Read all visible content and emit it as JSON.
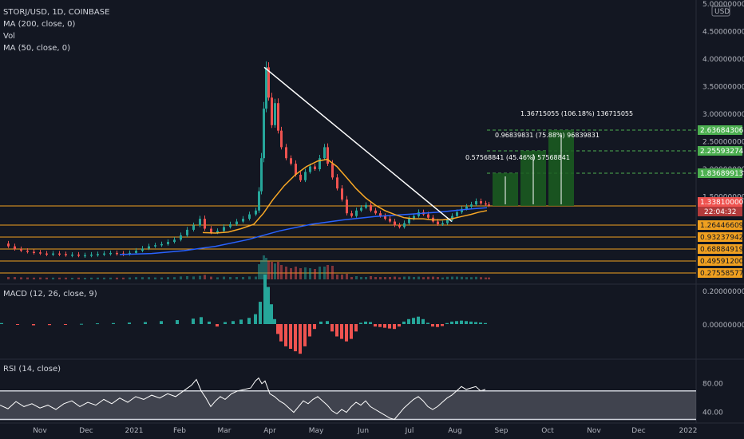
{
  "legend": {
    "symbol": "STORJ/USD, 1D, COINBASE",
    "ma200": "MA (200, close, 0)",
    "vol": "Vol",
    "ma50": "MA (50, close, 0)"
  },
  "colors": {
    "background": "#131722",
    "up": "#26a69a",
    "down": "#ef5350",
    "ma200": "#2962ff",
    "ma50": "#f9a825",
    "level": "#f0a020",
    "target": "#4caf50",
    "rsi": "#ffffff",
    "price_tag": "#ef5350"
  },
  "chart_data": {
    "type": "candlestick",
    "x_ticks": [
      "Nov",
      "Dec",
      "2021",
      "Feb",
      "Mar",
      "Apr",
      "May",
      "Jun",
      "Jul",
      "Aug",
      "Sep",
      "Oct",
      "Nov",
      "Dec",
      "2022"
    ],
    "price_axis": {
      "currency": "USD",
      "ticks": [
        "5.00000000",
        "4.50000000",
        "4.00000000",
        "3.50000000",
        "3.00000000",
        "2.50000000",
        "2.00000000",
        "1.50000000"
      ],
      "ylim": [
        0.2,
        5.0
      ]
    },
    "current_price": "1.33810000",
    "countdown": "22:04:32",
    "level_tags": [
      "1.26446609",
      "0.93237942",
      "0.68884919",
      "0.49591200",
      "0.27558577"
    ],
    "target_tags": [
      "2.63684306",
      "2.25593274",
      "1.83689913"
    ],
    "annotations": [
      "1.36715055 (106.18%) 136715055",
      "0.96839831 (75.88%) 96839831",
      "0.57568841 (45.46%) 57568841"
    ],
    "close_series": [
      {
        "x": 0,
        "y": 0.65
      },
      {
        "x": 8,
        "y": 0.6
      },
      {
        "x": 16,
        "y": 0.55
      },
      {
        "x": 24,
        "y": 0.52
      },
      {
        "x": 32,
        "y": 0.5
      },
      {
        "x": 40,
        "y": 0.49
      },
      {
        "x": 48,
        "y": 0.47
      },
      {
        "x": 56,
        "y": 0.46
      },
      {
        "x": 64,
        "y": 0.47
      },
      {
        "x": 72,
        "y": 0.46
      },
      {
        "x": 80,
        "y": 0.45
      },
      {
        "x": 88,
        "y": 0.45
      },
      {
        "x": 96,
        "y": 0.44
      },
      {
        "x": 104,
        "y": 0.44
      },
      {
        "x": 112,
        "y": 0.45
      },
      {
        "x": 120,
        "y": 0.46
      },
      {
        "x": 128,
        "y": 0.47
      },
      {
        "x": 136,
        "y": 0.48
      },
      {
        "x": 144,
        "y": 0.47
      },
      {
        "x": 152,
        "y": 0.46
      },
      {
        "x": 160,
        "y": 0.48
      },
      {
        "x": 168,
        "y": 0.52
      },
      {
        "x": 176,
        "y": 0.56
      },
      {
        "x": 184,
        "y": 0.6
      },
      {
        "x": 192,
        "y": 0.62
      },
      {
        "x": 200,
        "y": 0.64
      },
      {
        "x": 208,
        "y": 0.68
      },
      {
        "x": 216,
        "y": 0.72
      },
      {
        "x": 224,
        "y": 0.8
      },
      {
        "x": 232,
        "y": 0.9
      },
      {
        "x": 240,
        "y": 0.98
      },
      {
        "x": 248,
        "y": 1.1
      },
      {
        "x": 254,
        "y": 0.92
      },
      {
        "x": 262,
        "y": 0.85
      },
      {
        "x": 270,
        "y": 0.88
      },
      {
        "x": 278,
        "y": 0.95
      },
      {
        "x": 286,
        "y": 1.0
      },
      {
        "x": 294,
        "y": 1.05
      },
      {
        "x": 302,
        "y": 1.1
      },
      {
        "x": 310,
        "y": 1.18
      },
      {
        "x": 318,
        "y": 1.25
      },
      {
        "x": 322,
        "y": 1.6
      },
      {
        "x": 325,
        "y": 2.2
      },
      {
        "x": 328,
        "y": 3.1
      },
      {
        "x": 331,
        "y": 3.85
      },
      {
        "x": 334,
        "y": 3.3
      },
      {
        "x": 338,
        "y": 2.8
      },
      {
        "x": 342,
        "y": 3.2
      },
      {
        "x": 346,
        "y": 2.7
      },
      {
        "x": 350,
        "y": 2.4
      },
      {
        "x": 356,
        "y": 2.2
      },
      {
        "x": 362,
        "y": 2.1
      },
      {
        "x": 368,
        "y": 1.9
      },
      {
        "x": 374,
        "y": 1.8
      },
      {
        "x": 380,
        "y": 1.95
      },
      {
        "x": 386,
        "y": 2.05
      },
      {
        "x": 392,
        "y": 2.0
      },
      {
        "x": 398,
        "y": 2.2
      },
      {
        "x": 404,
        "y": 2.4
      },
      {
        "x": 408,
        "y": 2.1
      },
      {
        "x": 414,
        "y": 1.85
      },
      {
        "x": 420,
        "y": 1.65
      },
      {
        "x": 426,
        "y": 1.45
      },
      {
        "x": 432,
        "y": 1.2
      },
      {
        "x": 438,
        "y": 1.15
      },
      {
        "x": 444,
        "y": 1.25
      },
      {
        "x": 450,
        "y": 1.3
      },
      {
        "x": 456,
        "y": 1.35
      },
      {
        "x": 462,
        "y": 1.25
      },
      {
        "x": 468,
        "y": 1.2
      },
      {
        "x": 474,
        "y": 1.15
      },
      {
        "x": 480,
        "y": 1.1
      },
      {
        "x": 486,
        "y": 1.05
      },
      {
        "x": 492,
        "y": 0.98
      },
      {
        "x": 498,
        "y": 0.95
      },
      {
        "x": 504,
        "y": 1.02
      },
      {
        "x": 510,
        "y": 1.1
      },
      {
        "x": 516,
        "y": 1.15
      },
      {
        "x": 522,
        "y": 1.22
      },
      {
        "x": 528,
        "y": 1.18
      },
      {
        "x": 534,
        "y": 1.12
      },
      {
        "x": 540,
        "y": 1.05
      },
      {
        "x": 546,
        "y": 1.0
      },
      {
        "x": 552,
        "y": 1.02
      },
      {
        "x": 558,
        "y": 1.08
      },
      {
        "x": 564,
        "y": 1.15
      },
      {
        "x": 570,
        "y": 1.22
      },
      {
        "x": 576,
        "y": 1.28
      },
      {
        "x": 582,
        "y": 1.32
      },
      {
        "x": 588,
        "y": 1.36
      },
      {
        "x": 594,
        "y": 1.42
      },
      {
        "x": 600,
        "y": 1.38
      },
      {
        "x": 606,
        "y": 1.36
      },
      {
        "x": 610,
        "y": 1.34
      }
    ],
    "ma50_series": [
      {
        "x": 254,
        "y": 0.85
      },
      {
        "x": 270,
        "y": 0.84
      },
      {
        "x": 286,
        "y": 0.86
      },
      {
        "x": 302,
        "y": 0.92
      },
      {
        "x": 318,
        "y": 1.0
      },
      {
        "x": 330,
        "y": 1.2
      },
      {
        "x": 342,
        "y": 1.45
      },
      {
        "x": 356,
        "y": 1.7
      },
      {
        "x": 370,
        "y": 1.9
      },
      {
        "x": 384,
        "y": 2.05
      },
      {
        "x": 398,
        "y": 2.15
      },
      {
        "x": 410,
        "y": 2.18
      },
      {
        "x": 422,
        "y": 2.05
      },
      {
        "x": 434,
        "y": 1.85
      },
      {
        "x": 446,
        "y": 1.65
      },
      {
        "x": 458,
        "y": 1.48
      },
      {
        "x": 470,
        "y": 1.35
      },
      {
        "x": 482,
        "y": 1.25
      },
      {
        "x": 494,
        "y": 1.18
      },
      {
        "x": 506,
        "y": 1.12
      },
      {
        "x": 518,
        "y": 1.1
      },
      {
        "x": 530,
        "y": 1.1
      },
      {
        "x": 542,
        "y": 1.08
      },
      {
        "x": 554,
        "y": 1.08
      },
      {
        "x": 566,
        "y": 1.1
      },
      {
        "x": 578,
        "y": 1.14
      },
      {
        "x": 590,
        "y": 1.18
      },
      {
        "x": 600,
        "y": 1.22
      },
      {
        "x": 610,
        "y": 1.25
      }
    ],
    "ma200_series": [
      {
        "x": 150,
        "y": 0.45
      },
      {
        "x": 190,
        "y": 0.47
      },
      {
        "x": 230,
        "y": 0.52
      },
      {
        "x": 270,
        "y": 0.6
      },
      {
        "x": 310,
        "y": 0.72
      },
      {
        "x": 350,
        "y": 0.88
      },
      {
        "x": 390,
        "y": 1.0
      },
      {
        "x": 430,
        "y": 1.08
      },
      {
        "x": 470,
        "y": 1.14
      },
      {
        "x": 510,
        "y": 1.18
      },
      {
        "x": 550,
        "y": 1.22
      },
      {
        "x": 590,
        "y": 1.28
      },
      {
        "x": 610,
        "y": 1.3
      }
    ],
    "macd_axis": {
      "ticks": [
        "0.20000000",
        "0.00000000"
      ],
      "ylim": [
        -0.13,
        0.25
      ]
    },
    "macd_hist": [
      {
        "x": 0,
        "y": 0.004
      },
      {
        "x": 20,
        "y": -0.003
      },
      {
        "x": 40,
        "y": -0.005
      },
      {
        "x": 60,
        "y": -0.004
      },
      {
        "x": 80,
        "y": -0.002
      },
      {
        "x": 100,
        "y": 0.001
      },
      {
        "x": 120,
        "y": 0.003
      },
      {
        "x": 140,
        "y": 0.004
      },
      {
        "x": 160,
        "y": 0.006
      },
      {
        "x": 180,
        "y": 0.008
      },
      {
        "x": 200,
        "y": 0.012
      },
      {
        "x": 220,
        "y": 0.016
      },
      {
        "x": 240,
        "y": 0.022
      },
      {
        "x": 250,
        "y": 0.028
      },
      {
        "x": 260,
        "y": 0.01
      },
      {
        "x": 270,
        "y": -0.01
      },
      {
        "x": 280,
        "y": 0.008
      },
      {
        "x": 290,
        "y": 0.012
      },
      {
        "x": 300,
        "y": 0.018
      },
      {
        "x": 310,
        "y": 0.025
      },
      {
        "x": 318,
        "y": 0.04
      },
      {
        "x": 324,
        "y": 0.09
      },
      {
        "x": 330,
        "y": 0.2
      },
      {
        "x": 334,
        "y": 0.15
      },
      {
        "x": 338,
        "y": 0.08
      },
      {
        "x": 342,
        "y": 0.02
      },
      {
        "x": 346,
        "y": -0.04
      },
      {
        "x": 350,
        "y": -0.07
      },
      {
        "x": 356,
        "y": -0.09
      },
      {
        "x": 362,
        "y": -0.1
      },
      {
        "x": 368,
        "y": -0.11
      },
      {
        "x": 374,
        "y": -0.12
      },
      {
        "x": 380,
        "y": -0.09
      },
      {
        "x": 386,
        "y": -0.05
      },
      {
        "x": 392,
        "y": -0.02
      },
      {
        "x": 400,
        "y": 0.01
      },
      {
        "x": 408,
        "y": 0.012
      },
      {
        "x": 414,
        "y": -0.03
      },
      {
        "x": 420,
        "y": -0.05
      },
      {
        "x": 426,
        "y": -0.06
      },
      {
        "x": 432,
        "y": -0.07
      },
      {
        "x": 438,
        "y": -0.06
      },
      {
        "x": 444,
        "y": -0.03
      },
      {
        "x": 450,
        "y": 0.005
      },
      {
        "x": 456,
        "y": 0.01
      },
      {
        "x": 462,
        "y": 0.008
      },
      {
        "x": 468,
        "y": -0.01
      },
      {
        "x": 474,
        "y": -0.012
      },
      {
        "x": 480,
        "y": -0.015
      },
      {
        "x": 486,
        "y": -0.018
      },
      {
        "x": 492,
        "y": -0.02
      },
      {
        "x": 498,
        "y": -0.01
      },
      {
        "x": 504,
        "y": 0.01
      },
      {
        "x": 510,
        "y": 0.02
      },
      {
        "x": 516,
        "y": 0.025
      },
      {
        "x": 522,
        "y": 0.03
      },
      {
        "x": 528,
        "y": 0.02
      },
      {
        "x": 534,
        "y": 0.005
      },
      {
        "x": 540,
        "y": -0.01
      },
      {
        "x": 546,
        "y": -0.012
      },
      {
        "x": 552,
        "y": -0.008
      },
      {
        "x": 558,
        "y": 0.004
      },
      {
        "x": 564,
        "y": 0.01
      },
      {
        "x": 570,
        "y": 0.012
      },
      {
        "x": 576,
        "y": 0.014
      },
      {
        "x": 582,
        "y": 0.012
      },
      {
        "x": 588,
        "y": 0.01
      },
      {
        "x": 594,
        "y": 0.008
      },
      {
        "x": 600,
        "y": 0.006
      },
      {
        "x": 606,
        "y": 0.004
      }
    ],
    "rsi_axis": {
      "ticks": [
        "80.00",
        "40.00"
      ],
      "ylim": [
        25,
        92
      ]
    },
    "rsi_series": [
      {
        "x": 0,
        "y": 50
      },
      {
        "x": 10,
        "y": 45
      },
      {
        "x": 20,
        "y": 55
      },
      {
        "x": 30,
        "y": 48
      },
      {
        "x": 40,
        "y": 52
      },
      {
        "x": 50,
        "y": 46
      },
      {
        "x": 60,
        "y": 50
      },
      {
        "x": 70,
        "y": 44
      },
      {
        "x": 80,
        "y": 52
      },
      {
        "x": 90,
        "y": 56
      },
      {
        "x": 100,
        "y": 48
      },
      {
        "x": 110,
        "y": 54
      },
      {
        "x": 120,
        "y": 50
      },
      {
        "x": 130,
        "y": 58
      },
      {
        "x": 140,
        "y": 52
      },
      {
        "x": 150,
        "y": 60
      },
      {
        "x": 160,
        "y": 54
      },
      {
        "x": 170,
        "y": 62
      },
      {
        "x": 180,
        "y": 58
      },
      {
        "x": 190,
        "y": 64
      },
      {
        "x": 200,
        "y": 60
      },
      {
        "x": 210,
        "y": 66
      },
      {
        "x": 220,
        "y": 62
      },
      {
        "x": 230,
        "y": 70
      },
      {
        "x": 240,
        "y": 78
      },
      {
        "x": 246,
        "y": 86
      },
      {
        "x": 252,
        "y": 70
      },
      {
        "x": 258,
        "y": 60
      },
      {
        "x": 264,
        "y": 48
      },
      {
        "x": 270,
        "y": 56
      },
      {
        "x": 276,
        "y": 62
      },
      {
        "x": 282,
        "y": 58
      },
      {
        "x": 290,
        "y": 66
      },
      {
        "x": 298,
        "y": 70
      },
      {
        "x": 306,
        "y": 72
      },
      {
        "x": 314,
        "y": 74
      },
      {
        "x": 320,
        "y": 84
      },
      {
        "x": 324,
        "y": 88
      },
      {
        "x": 328,
        "y": 80
      },
      {
        "x": 332,
        "y": 84
      },
      {
        "x": 338,
        "y": 66
      },
      {
        "x": 344,
        "y": 62
      },
      {
        "x": 350,
        "y": 56
      },
      {
        "x": 356,
        "y": 52
      },
      {
        "x": 362,
        "y": 46
      },
      {
        "x": 368,
        "y": 40
      },
      {
        "x": 374,
        "y": 48
      },
      {
        "x": 380,
        "y": 56
      },
      {
        "x": 386,
        "y": 52
      },
      {
        "x": 392,
        "y": 58
      },
      {
        "x": 398,
        "y": 62
      },
      {
        "x": 404,
        "y": 56
      },
      {
        "x": 410,
        "y": 50
      },
      {
        "x": 416,
        "y": 42
      },
      {
        "x": 422,
        "y": 38
      },
      {
        "x": 428,
        "y": 44
      },
      {
        "x": 434,
        "y": 40
      },
      {
        "x": 440,
        "y": 48
      },
      {
        "x": 446,
        "y": 54
      },
      {
        "x": 452,
        "y": 50
      },
      {
        "x": 458,
        "y": 56
      },
      {
        "x": 464,
        "y": 48
      },
      {
        "x": 470,
        "y": 44
      },
      {
        "x": 476,
        "y": 40
      },
      {
        "x": 482,
        "y": 36
      },
      {
        "x": 488,
        "y": 32
      },
      {
        "x": 494,
        "y": 30
      },
      {
        "x": 500,
        "y": 38
      },
      {
        "x": 506,
        "y": 46
      },
      {
        "x": 512,
        "y": 52
      },
      {
        "x": 518,
        "y": 58
      },
      {
        "x": 524,
        "y": 62
      },
      {
        "x": 530,
        "y": 56
      },
      {
        "x": 536,
        "y": 48
      },
      {
        "x": 542,
        "y": 44
      },
      {
        "x": 548,
        "y": 48
      },
      {
        "x": 554,
        "y": 54
      },
      {
        "x": 560,
        "y": 60
      },
      {
        "x": 566,
        "y": 64
      },
      {
        "x": 572,
        "y": 70
      },
      {
        "x": 578,
        "y": 76
      },
      {
        "x": 584,
        "y": 72
      },
      {
        "x": 590,
        "y": 74
      },
      {
        "x": 596,
        "y": 76
      },
      {
        "x": 602,
        "y": 70
      },
      {
        "x": 608,
        "y": 72
      }
    ]
  },
  "macd_legend": "MACD (12, 26, close, 9)",
  "rsi_legend": "RSI (14, close)"
}
